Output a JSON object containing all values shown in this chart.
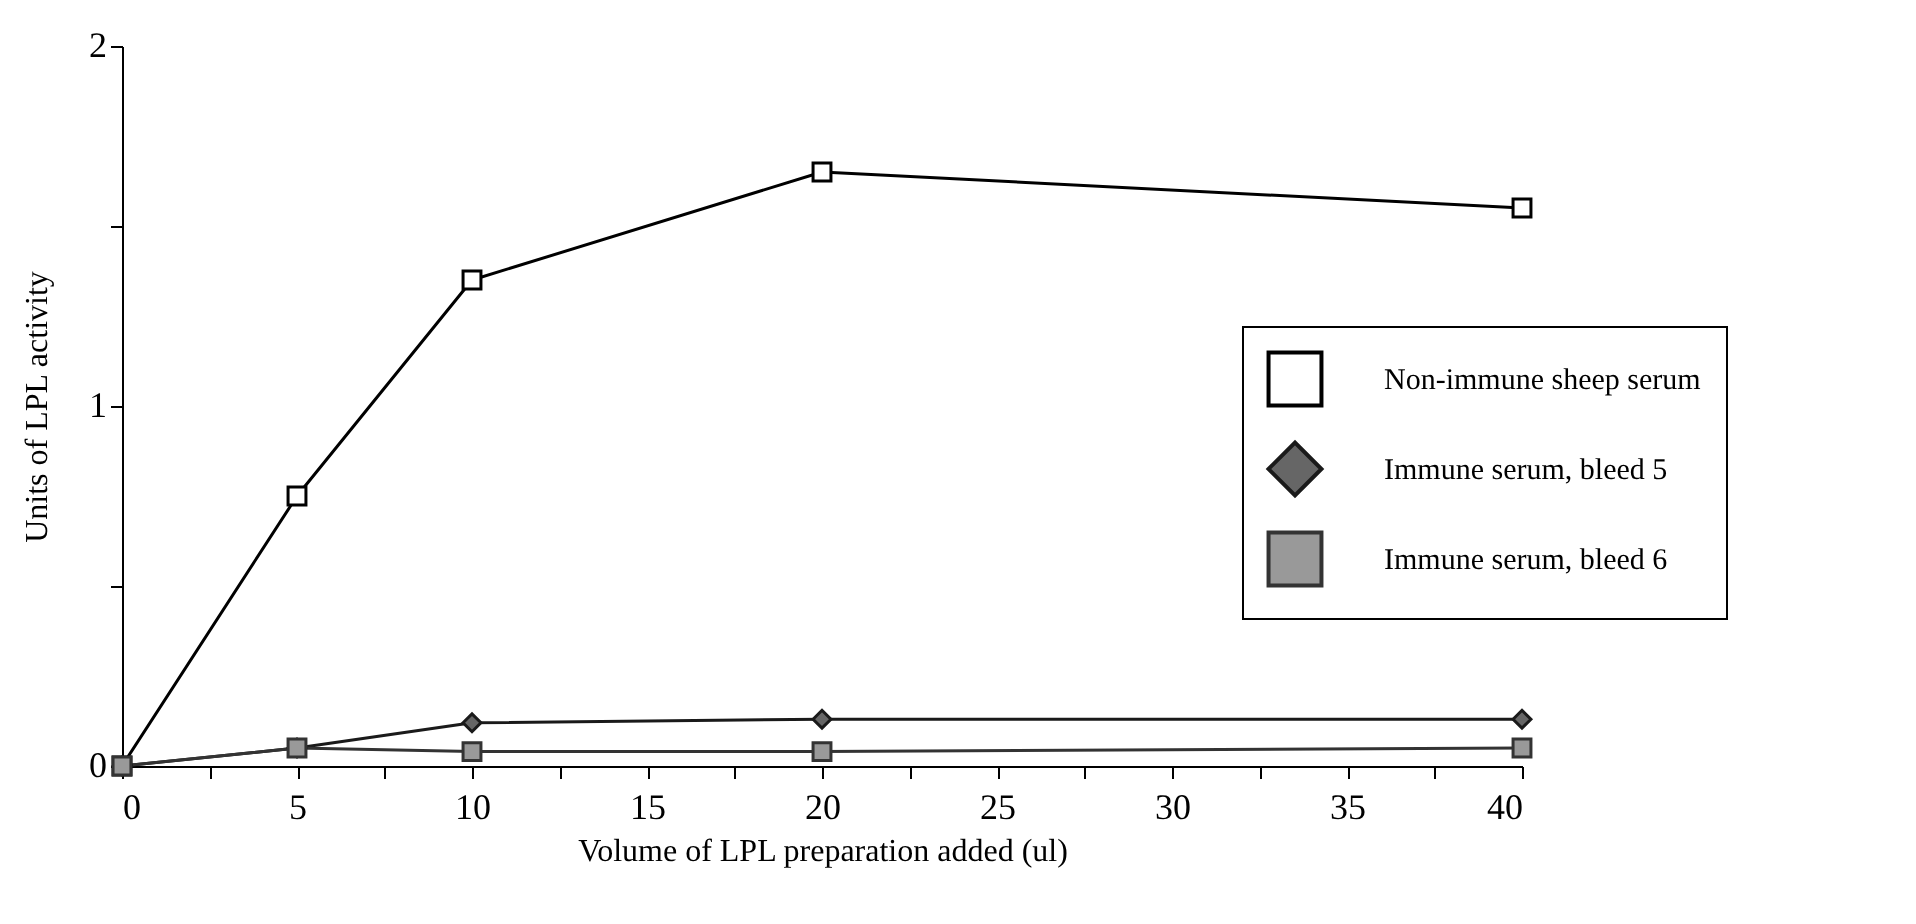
{
  "chart_data": {
    "type": "line",
    "xlabel": "Volume of LPL preparation added (ul)",
    "ylabel": "Units of LPL activity",
    "x": [
      0,
      5,
      10,
      20,
      40
    ],
    "series": [
      {
        "name": "Non-immune sheep serum",
        "color": "#000000",
        "marker": "square",
        "values": [
          0,
          0.75,
          1.35,
          1.65,
          1.55
        ]
      },
      {
        "name": "Immune serum, bleed 5",
        "color": "#1a1a1a",
        "marker": "diamond",
        "values": [
          0,
          0.05,
          0.12,
          0.13,
          0.13
        ]
      },
      {
        "name": "Immune serum, bleed 6",
        "color": "#333333",
        "marker": "square",
        "values": [
          0,
          0.05,
          0.04,
          0.04,
          0.05
        ]
      }
    ],
    "xlim": [
      0,
      40
    ],
    "ylim": [
      0,
      2
    ],
    "xticks": [
      0,
      {
        "value": 2.5,
        "label": null
      },
      5,
      {
        "value": 7.5,
        "label": null
      },
      10,
      {
        "value": 12.5,
        "label": null
      },
      15,
      {
        "value": 17.5,
        "label": null
      },
      20,
      {
        "value": 22.5,
        "label": null
      },
      25,
      {
        "value": 27.5,
        "label": null
      },
      30,
      {
        "value": 32.5,
        "label": null
      },
      35,
      {
        "value": 37.5,
        "label": null
      },
      40
    ],
    "yticks": [
      0,
      {
        "value": 0.5,
        "label": null
      },
      1,
      {
        "value": 1.5,
        "label": null
      },
      2
    ],
    "grid": false,
    "legend": "right",
    "line_style": "solid"
  }
}
